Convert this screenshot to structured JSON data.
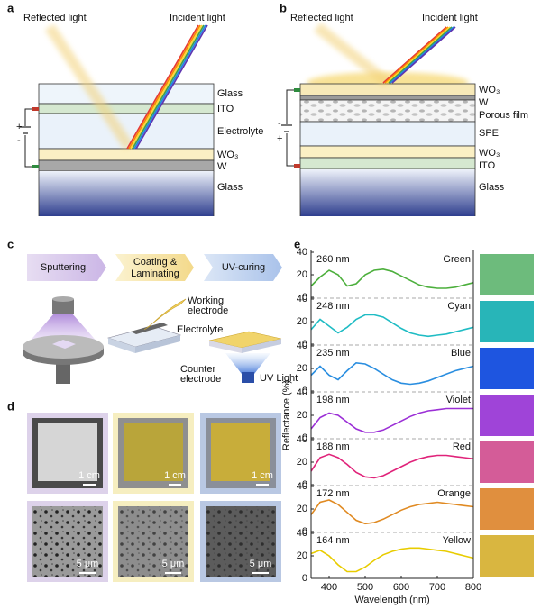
{
  "panels": {
    "a": {
      "label": "a",
      "reflected": "Reflected light",
      "incident": "Incident light",
      "layers": [
        "Glass",
        "ITO",
        "Electrolyte",
        "WO₃",
        "W",
        "Glass"
      ],
      "polarity": [
        "+",
        "-"
      ]
    },
    "b": {
      "label": "b",
      "reflected": "Reflected light",
      "incident": "Incident light",
      "layers": [
        "WO₃",
        "W",
        "Porous film",
        "SPE",
        "WO₃",
        "ITO",
        "Glass"
      ],
      "polarity": [
        "-",
        "+"
      ]
    },
    "c": {
      "label": "c",
      "steps": [
        [
          "Sputtering"
        ],
        [
          "Coating &",
          "Laminating"
        ],
        [
          "UV-curing"
        ]
      ],
      "callouts": [
        [
          "Working",
          "electrode"
        ],
        [
          "Electrolyte"
        ],
        [
          "Counter",
          "electrode"
        ],
        [
          "UV Light"
        ]
      ]
    },
    "d": {
      "label": "d",
      "scale_bars": [
        "1 cm",
        "1 cm",
        "1 cm",
        "5 μm",
        "5 μm",
        "5 μm"
      ]
    },
    "e": {
      "label": "e"
    }
  },
  "chart_data": {
    "type": "line",
    "xlabel": "Wavelength (nm)",
    "ylabel": "Reflectance (%)",
    "x": [
      350,
      375,
      400,
      425,
      450,
      475,
      500,
      525,
      550,
      575,
      600,
      625,
      650,
      675,
      700,
      725,
      750,
      775,
      800
    ],
    "xlim": [
      350,
      800
    ],
    "xticks": [
      400,
      500,
      600,
      700,
      800
    ],
    "ylim": [
      0,
      40
    ],
    "yticks": [
      0,
      20,
      40
    ],
    "series": [
      {
        "name": "Green",
        "thickness": "260 nm",
        "color": "#4caf3c",
        "swatch": "#6dbb7c",
        "values": [
          10,
          18,
          24,
          20,
          10,
          12,
          20,
          24,
          25,
          23,
          19,
          15,
          11,
          9,
          8,
          8,
          9,
          11,
          13
        ]
      },
      {
        "name": "Cyan",
        "thickness": "248 nm",
        "color": "#1fbcc4",
        "swatch": "#28b5b8",
        "values": [
          13,
          22,
          16,
          10,
          15,
          22,
          26,
          26,
          24,
          19,
          14,
          10,
          8,
          7,
          8,
          9,
          11,
          13,
          15
        ]
      },
      {
        "name": "Blue",
        "thickness": "235 nm",
        "color": "#2a8ee0",
        "swatch": "#1e55e0",
        "values": [
          14,
          22,
          14,
          10,
          18,
          25,
          24,
          20,
          15,
          10,
          7,
          6,
          7,
          9,
          12,
          15,
          18,
          20,
          22
        ]
      },
      {
        "name": "Violet",
        "thickness": "198 nm",
        "color": "#9b2fd6",
        "swatch": "#9f44d8",
        "values": [
          8,
          18,
          22,
          20,
          14,
          8,
          5,
          5,
          7,
          11,
          15,
          19,
          22,
          24,
          25,
          26,
          26,
          26,
          26
        ]
      },
      {
        "name": "Red",
        "thickness": "188 nm",
        "color": "#e0237a",
        "swatch": "#d45c98",
        "values": [
          12,
          24,
          27,
          24,
          18,
          11,
          7,
          6,
          8,
          12,
          16,
          20,
          23,
          25,
          26,
          26,
          25,
          24,
          23
        ]
      },
      {
        "name": "Orange",
        "thickness": "172 nm",
        "color": "#e08a22",
        "swatch": "#e08f3e",
        "values": [
          15,
          26,
          28,
          24,
          17,
          10,
          7,
          8,
          11,
          15,
          19,
          22,
          24,
          25,
          26,
          25,
          24,
          23,
          22
        ]
      },
      {
        "name": "Yellow",
        "thickness": "164 nm",
        "color": "#e8cc00",
        "swatch": "#d9b640",
        "values": [
          22,
          25,
          20,
          12,
          6,
          6,
          10,
          16,
          21,
          24,
          26,
          27,
          27,
          26,
          25,
          24,
          22,
          20,
          18
        ]
      }
    ]
  }
}
